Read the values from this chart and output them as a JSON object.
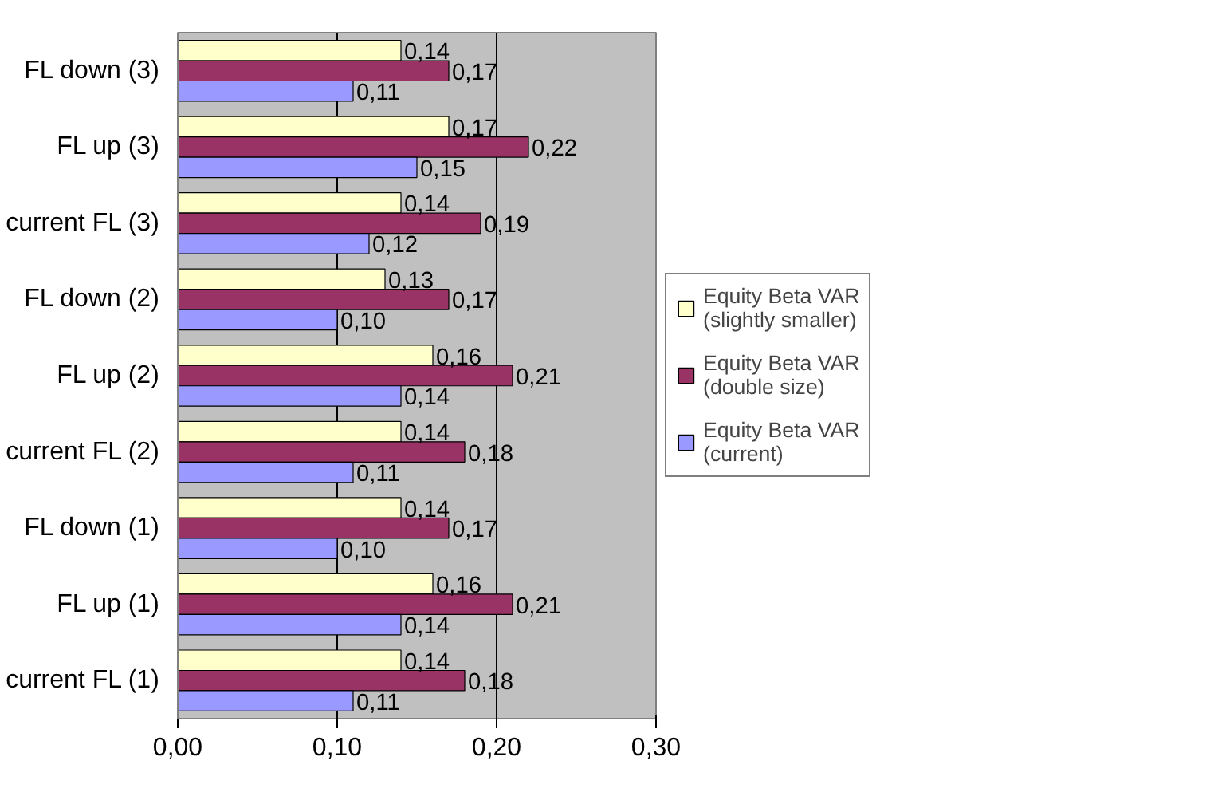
{
  "chart_data": {
    "type": "bar",
    "orientation": "horizontal",
    "categories": [
      "FL down (3)",
      "FL up (3)",
      "current FL (3)",
      "FL down (2)",
      "FL up (2)",
      "current FL (2)",
      "FL down (1)",
      "FL up (1)",
      "current FL (1)"
    ],
    "series": [
      {
        "name": "Equity Beta VAR (slightly smaller)",
        "color": "#ffffcc",
        "values": [
          0.14,
          0.17,
          0.14,
          0.13,
          0.16,
          0.14,
          0.14,
          0.16,
          0.14
        ],
        "value_labels": [
          "0,14",
          "0,17",
          "0,14",
          "0,13",
          "0,16",
          "0,14",
          "0,14",
          "0,16",
          "0,14"
        ]
      },
      {
        "name": "Equity Beta VAR (double size)",
        "color": "#993366",
        "values": [
          0.17,
          0.22,
          0.19,
          0.17,
          0.21,
          0.18,
          0.17,
          0.21,
          0.18
        ],
        "value_labels": [
          "0,17",
          "0,22",
          "0,19",
          "0,17",
          "0,21",
          "0,18",
          "0,17",
          "0,21",
          "0,18"
        ]
      },
      {
        "name": "Equity Beta VAR (current)",
        "color": "#9999ff",
        "values": [
          0.11,
          0.15,
          0.12,
          0.1,
          0.14,
          0.11,
          0.1,
          0.14,
          0.11
        ],
        "value_labels": [
          "0,11",
          "0,15",
          "0,12",
          "0,10",
          "0,14",
          "0,11",
          "0,10",
          "0,14",
          "0,11"
        ]
      }
    ],
    "xlim": [
      0,
      0.3
    ],
    "xticks": [
      {
        "value": 0,
        "label": "0,00"
      },
      {
        "value": 0.1,
        "label": "0,10"
      },
      {
        "value": 0.2,
        "label": "0,20"
      },
      {
        "value": 0.3,
        "label": "0,30"
      }
    ],
    "grid": "x",
    "legend": "right"
  }
}
